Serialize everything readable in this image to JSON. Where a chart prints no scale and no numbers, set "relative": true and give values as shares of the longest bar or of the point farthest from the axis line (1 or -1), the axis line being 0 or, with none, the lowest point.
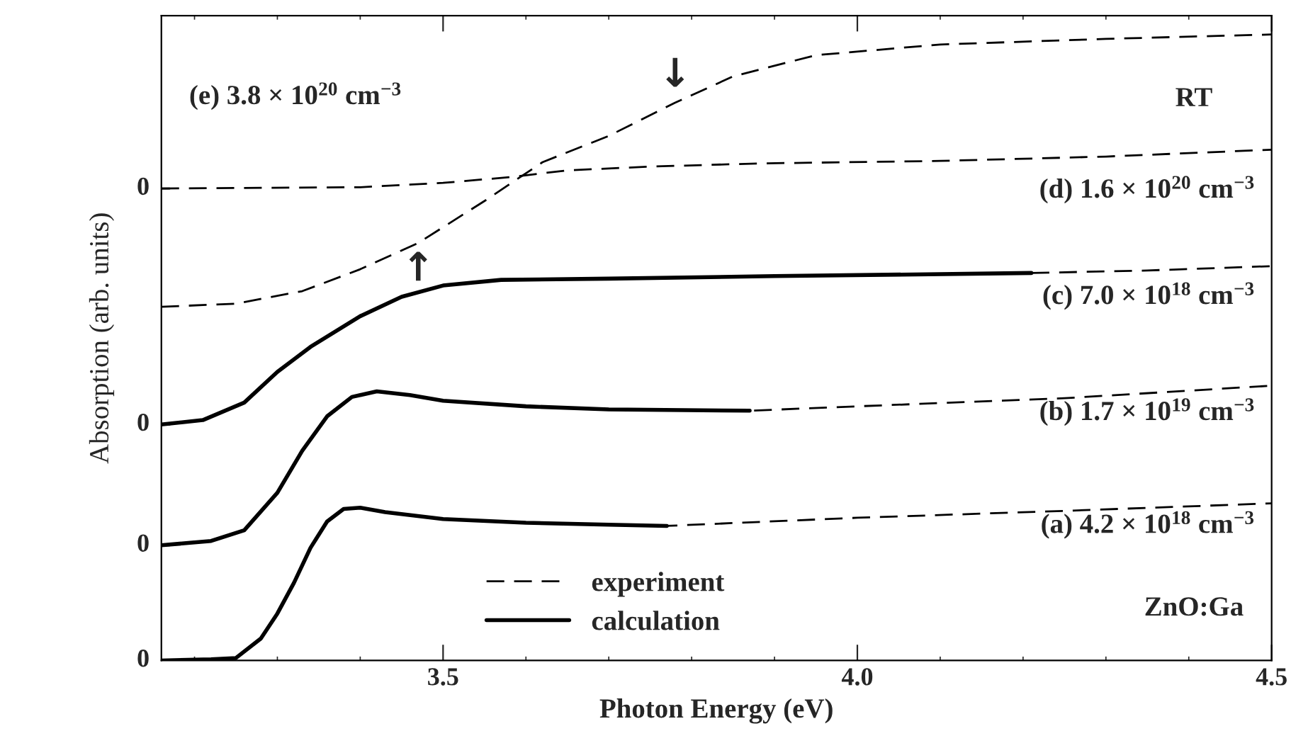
{
  "chart_data": {
    "type": "line",
    "relative": true,
    "xlabel": "Photon Energy (eV)",
    "ylabel": "Absorption (arb. units)",
    "xlim": [
      3.16,
      4.5
    ],
    "xticks": [
      3.5,
      {
        "value": 4.0,
        "label": "4.0"
      },
      4.5
    ],
    "legend": "bottom",
    "grid": false,
    "marker": "none",
    "series": [
      {
        "name": "experiment",
        "color": "#000000",
        "line_style": "dashed",
        "x": [
          3.16,
          3.22,
          3.25,
          3.28,
          3.3,
          3.32,
          3.34,
          3.36,
          3.38,
          3.4,
          3.43,
          3.5,
          3.6,
          3.7,
          3.77,
          4.0,
          4.25,
          4.5
        ],
        "values": [
          0,
          0.002,
          0.004,
          0.035,
          0.075,
          0.124,
          0.18,
          0.222,
          0.242,
          0.244,
          0.237,
          0.226,
          0.22,
          0.217,
          0.215,
          0.228,
          0.239,
          0.251
        ]
      },
      {
        "color": "#000000",
        "line_style": "dashed",
        "x": [
          3.16,
          3.22,
          3.26,
          3.3,
          3.33,
          3.36,
          3.39,
          3.42,
          3.46,
          3.5,
          3.6,
          3.7,
          3.87,
          4.0,
          4.25,
          4.5
        ],
        "values": [
          0.184,
          0.191,
          0.208,
          0.268,
          0.335,
          0.39,
          0.421,
          0.43,
          0.424,
          0.415,
          0.406,
          0.401,
          0.399,
          0.406,
          0.419,
          0.439
        ]
      },
      {
        "color": "#000000",
        "line_style": "dashed",
        "x": [
          3.16,
          3.21,
          3.26,
          3.3,
          3.34,
          3.4,
          3.45,
          3.5,
          3.57,
          3.7,
          3.9,
          4.21,
          4.35,
          4.5
        ],
        "values": [
          0.377,
          0.384,
          0.412,
          0.461,
          0.501,
          0.55,
          0.581,
          0.599,
          0.608,
          0.61,
          0.614,
          0.619,
          0.623,
          0.63
        ]
      },
      {
        "color": "#000000",
        "line_style": "dashed",
        "x": [
          3.16,
          3.4,
          3.5,
          3.58,
          3.65,
          3.75,
          3.88,
          4.1,
          4.3,
          4.5
        ],
        "values": [
          0.754,
          0.756,
          0.763,
          0.772,
          0.783,
          0.789,
          0.794,
          0.798,
          0.805,
          0.816
        ]
      },
      {
        "color": "#000000",
        "line_style": "dashed",
        "x": [
          3.16,
          3.25,
          3.33,
          3.4,
          3.47,
          3.55,
          3.62,
          3.7,
          3.78,
          3.85,
          3.95,
          4.1,
          4.3,
          4.5
        ],
        "values": [
          0.565,
          0.57,
          0.59,
          0.625,
          0.667,
          0.734,
          0.796,
          0.838,
          0.891,
          0.933,
          0.967,
          0.984,
          0.993,
          1.0
        ]
      },
      {
        "name": "calculation",
        "color": "#000000",
        "line_style": "solid",
        "x": [
          3.16,
          3.22,
          3.25,
          3.28,
          3.3,
          3.32,
          3.34,
          3.36,
          3.38,
          3.4,
          3.43,
          3.5,
          3.6,
          3.7,
          3.77
        ],
        "values": [
          0,
          0.002,
          0.004,
          0.035,
          0.075,
          0.124,
          0.18,
          0.222,
          0.242,
          0.244,
          0.237,
          0.226,
          0.22,
          0.217,
          0.215
        ]
      },
      {
        "color": "#000000",
        "line_style": "solid",
        "x": [
          3.16,
          3.22,
          3.26,
          3.3,
          3.33,
          3.36,
          3.39,
          3.42,
          3.46,
          3.5,
          3.6,
          3.7,
          3.87
        ],
        "values": [
          0.184,
          0.191,
          0.208,
          0.268,
          0.335,
          0.39,
          0.421,
          0.43,
          0.424,
          0.415,
          0.406,
          0.401,
          0.399
        ]
      },
      {
        "color": "#000000",
        "line_style": "solid",
        "x": [
          3.16,
          3.21,
          3.26,
          3.3,
          3.34,
          3.4,
          3.45,
          3.5,
          3.57,
          3.7,
          3.9,
          4.21
        ],
        "values": [
          0.377,
          0.384,
          0.412,
          0.461,
          0.501,
          0.55,
          0.581,
          0.599,
          0.608,
          0.61,
          0.614,
          0.619
        ]
      }
    ],
    "annotations": [
      {
        "text": "0",
        "x": 3.16,
        "y": 0
      },
      {
        "text": "0",
        "x": 3.16,
        "y": 0.184
      },
      {
        "text": "0",
        "x": 3.16,
        "y": 0.377
      },
      {
        "text": "0",
        "x": 3.16,
        "y": 0.754
      },
      "(a) 4.2 × 10$^{18}$ cm$^{−3}$",
      "(b) 1.7 × 10$^{19}$ cm$^{−3}$",
      "(c) 7.0 × 10$^{18}$ cm$^{−3}$",
      "(d) 1.6 × 10$^{20}$ cm$^{−3}$",
      "(e) 3.8 × 10$^{20}$ cm$^{−3}$",
      {
        "text": "↓",
        "x": 3.78,
        "y": 0.891
      },
      {
        "text": "↑",
        "x": 3.47,
        "y": 0.667
      },
      "RT",
      "ZnO:Ga"
    ]
  }
}
